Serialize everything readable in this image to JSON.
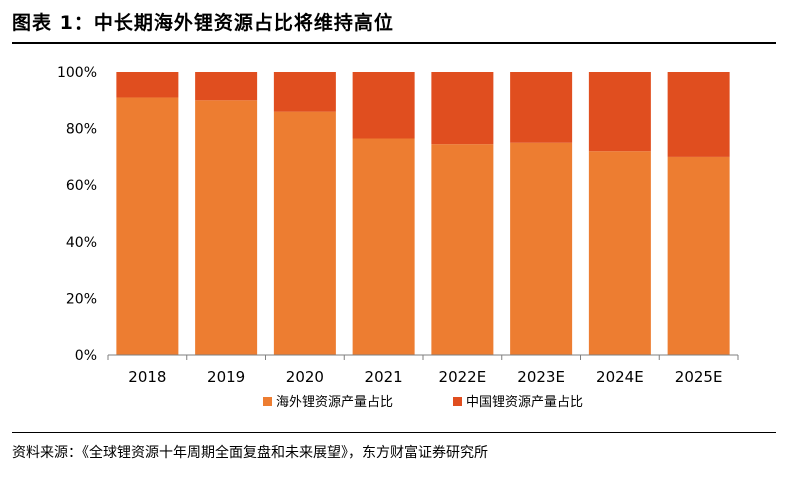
{
  "header": {
    "title": "图表 1：中长期海外锂资源占比将维持高位"
  },
  "footer": {
    "source": "资料来源：《全球锂资源十年周期全面复盘和未来展望》，东方财富证券研究所"
  },
  "colors": {
    "overseas": "#ED7D31",
    "china": "#E04E1F",
    "axis": "#7f7f7f",
    "text": "#000000"
  },
  "chart_data": {
    "type": "bar",
    "stacked": true,
    "categories": [
      "2018",
      "2019",
      "2020",
      "2021",
      "2022E",
      "2023E",
      "2024E",
      "2025E"
    ],
    "series": [
      {
        "name": "海外锂资源产量占比",
        "values": [
          91,
          90,
          86,
          76.5,
          74.5,
          75,
          72,
          70
        ]
      },
      {
        "name": "中国锂资源产量占比",
        "values": [
          9,
          10,
          14,
          23.5,
          25.5,
          25,
          28,
          30
        ]
      }
    ],
    "ylim": [
      0,
      100
    ],
    "yticks": [
      "0%",
      "20%",
      "40%",
      "60%",
      "80%",
      "100%"
    ],
    "grid": false,
    "legend_position": "bottom"
  }
}
